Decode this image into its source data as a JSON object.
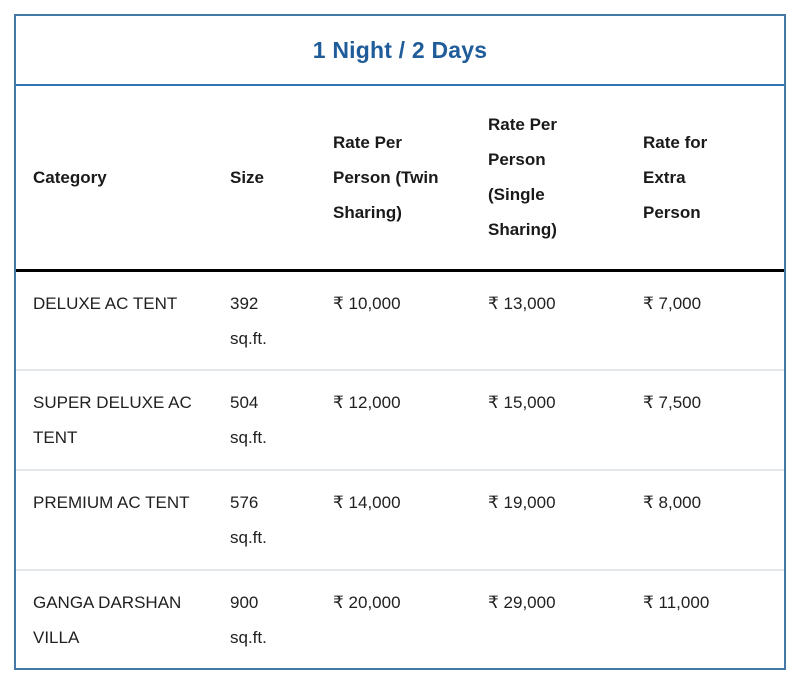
{
  "title": "1 Night / 2 Days",
  "table": {
    "columns": [
      "Category",
      "Size",
      "Rate Per Person (Twin Sharing)",
      "Rate Per Person (Single Sharing)",
      "Rate for Extra Person"
    ],
    "rows": [
      {
        "category": "DELUXE AC TENT",
        "size": "392",
        "size_unit": "sq.ft.",
        "rate_twin": "₹ 10,000",
        "rate_single": "₹ 13,000",
        "rate_extra": "₹ 7,000"
      },
      {
        "category": "SUPER DELUXE AC TENT",
        "size": "504",
        "size_unit": "sq.ft.",
        "rate_twin": "₹ 12,000",
        "rate_single": "₹ 15,000",
        "rate_extra": "₹ 7,500"
      },
      {
        "category": "PREMIUM AC TENT",
        "size": "576",
        "size_unit": "sq.ft.",
        "rate_twin": "₹ 14,000",
        "rate_single": "₹ 19,000",
        "rate_extra": "₹ 8,000"
      },
      {
        "category": "GANGA DARSHAN VILLA",
        "size": "900",
        "size_unit": "sq.ft.",
        "rate_twin": "₹ 20,000",
        "rate_single": "₹ 29,000",
        "rate_extra": "₹ 11,000"
      }
    ]
  },
  "colors": {
    "title_text": "#1f5c99",
    "outer_border": "#4579a5",
    "title_underline": "#2e75b6",
    "header_rule": "#000000",
    "row_divider": "#e3e7e9"
  }
}
